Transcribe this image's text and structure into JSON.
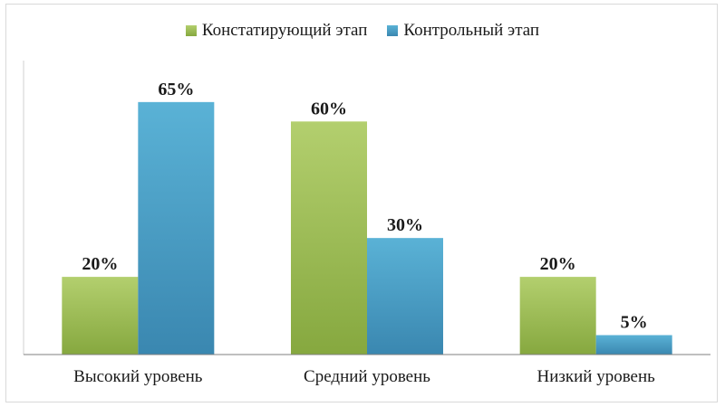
{
  "chart_data": {
    "type": "bar",
    "categories": [
      "Высокий уровень",
      "Средний уровень",
      "Низкий уровень"
    ],
    "series": [
      {
        "name": "Констатирующий этап",
        "values": [
          20,
          60,
          20
        ],
        "color_top": "#b3cf6e",
        "color_bottom": "#86a83f"
      },
      {
        "name": "Контрольный этап",
        "values": [
          65,
          30,
          5
        ],
        "color_top": "#5ab2d6",
        "color_bottom": "#3a87b0"
      }
    ],
    "value_suffix": "%",
    "ylim": [
      0,
      70
    ],
    "legend": "top-center",
    "grid": false,
    "title": "",
    "xlabel": "",
    "ylabel": ""
  }
}
